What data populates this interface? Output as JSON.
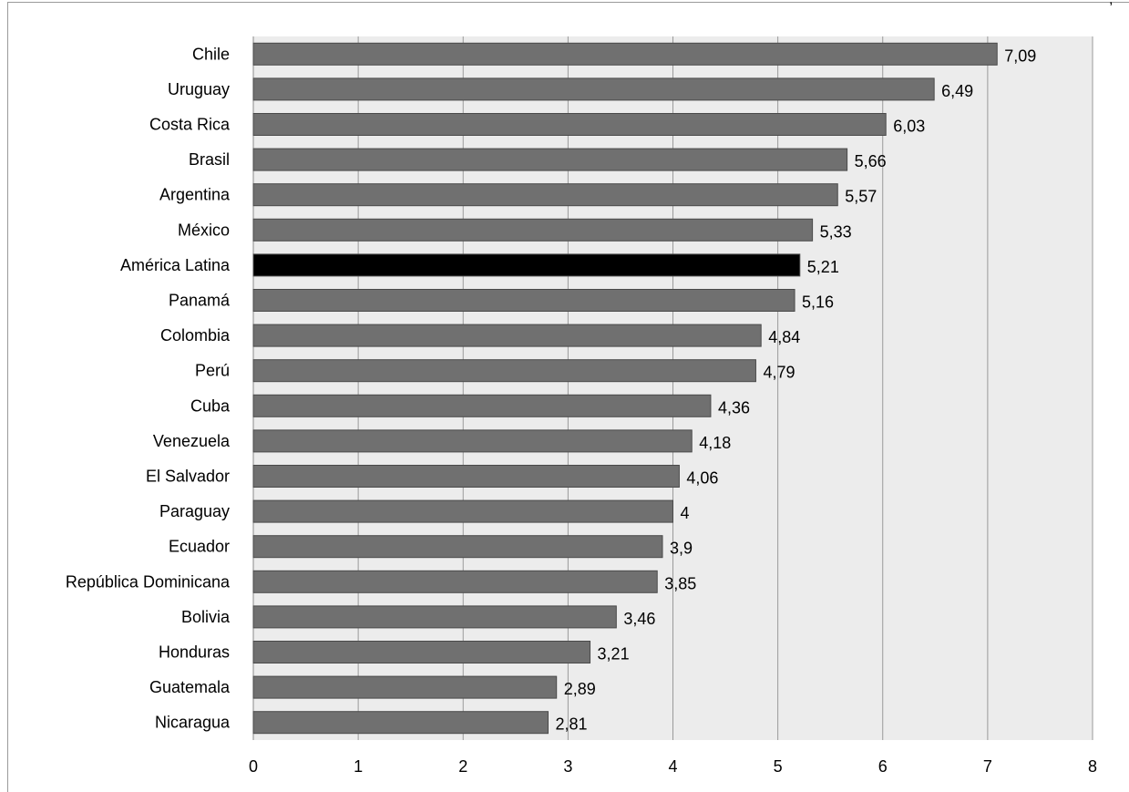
{
  "chart_data": {
    "type": "bar",
    "orientation": "horizontal",
    "categories": [
      "Chile",
      "Uruguay",
      "Costa Rica",
      "Brasil",
      "Argentina",
      "México",
      "América Latina",
      "Panamá",
      "Colombia",
      "Perú",
      "Cuba",
      "Venezuela",
      "El Salvador",
      "Paraguay",
      "Ecuador",
      "República Dominicana",
      "Bolivia",
      "Honduras",
      "Guatemala",
      "Nicaragua"
    ],
    "values": [
      7.09,
      6.49,
      6.03,
      5.66,
      5.57,
      5.33,
      5.21,
      5.16,
      4.84,
      4.79,
      4.36,
      4.18,
      4.06,
      4,
      3.9,
      3.85,
      3.46,
      3.21,
      2.89,
      2.81
    ],
    "value_labels": [
      "7,09",
      "6,49",
      "6,03",
      "5,66",
      "5,57",
      "5,33",
      "5,21",
      "5,16",
      "4,84",
      "4,79",
      "4,36",
      "4,18",
      "4,06",
      "4",
      "3,9",
      "3,85",
      "3,46",
      "3,21",
      "2,89",
      "2,81"
    ],
    "highlight_category": "América Latina",
    "xlim": [
      0,
      8
    ],
    "xticks": [
      "0",
      "1",
      "2",
      "3",
      "4",
      "5",
      "6",
      "7",
      "8"
    ],
    "title": "",
    "xlabel": "",
    "ylabel": "",
    "grid": "vertical",
    "legend": "none",
    "colors": {
      "bar": "#707070",
      "bar_highlight": "#000000",
      "plot_background": "#ececec",
      "gridline": "#9a9a9a"
    }
  },
  "corner_mark": ","
}
